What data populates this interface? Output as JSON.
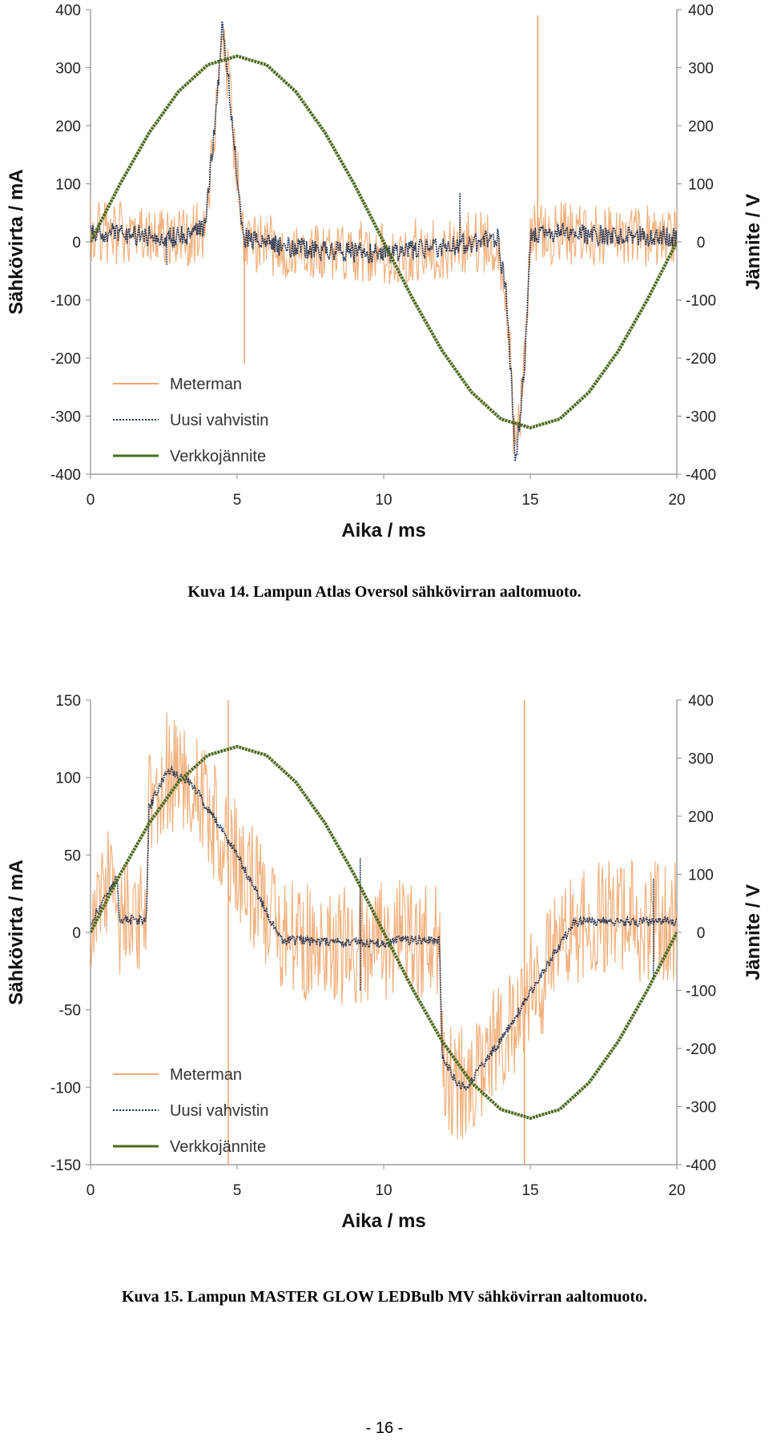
{
  "chart_data": [
    {
      "type": "line",
      "title": "",
      "xlabel": "Aika / ms",
      "ylabel": "Sähkövirta / mA",
      "y2label": "Jännite / V",
      "xlim": [
        0,
        20
      ],
      "ylim": [
        -400,
        400
      ],
      "y2lim": [
        -400,
        400
      ],
      "xticks": [
        0,
        5,
        10,
        15,
        20
      ],
      "xtick_labels": [
        "0",
        "5",
        "10",
        "15",
        "20"
      ],
      "yticks": [
        -400,
        -300,
        -200,
        -100,
        0,
        100,
        200,
        300,
        400
      ],
      "ytick_labels": [
        "-400",
        "-300",
        "-200",
        "-100",
        "0",
        "100",
        "200",
        "300",
        "400"
      ],
      "y2ticks": [
        -400,
        -300,
        -200,
        -100,
        0,
        100,
        200,
        300,
        400
      ],
      "y2tick_labels": [
        "-400",
        "-300",
        "-200",
        "-100",
        "0",
        "100",
        "200",
        "300",
        "400"
      ],
      "legend_position": "bottom-left",
      "grid": false,
      "series": [
        {
          "name": "Meterman",
          "style": "solid",
          "color": "#f2a870",
          "axis": "left",
          "noise_amplitude": 55,
          "x": [
            0,
            1,
            2,
            3,
            3.9,
            4.3,
            4.5,
            4.7,
            5.2,
            6,
            8,
            10,
            12,
            13.9,
            14.2,
            14.5,
            14.8,
            15,
            16,
            18,
            20
          ],
          "y": [
            20,
            15,
            10,
            8,
            25,
            230,
            380,
            280,
            10,
            -5,
            -15,
            -20,
            -10,
            5,
            -100,
            -380,
            -220,
            10,
            15,
            10,
            10
          ]
        },
        {
          "name": "Uusi vahvistin",
          "style": "dotted",
          "color": "#17294a",
          "axis": "left",
          "noise_amplitude": 18,
          "x": [
            0,
            1,
            2,
            3,
            3.9,
            4.3,
            4.5,
            4.7,
            5.2,
            6,
            8,
            10,
            12,
            13.9,
            14.2,
            14.5,
            14.8,
            15,
            16,
            18,
            20
          ],
          "y": [
            20,
            15,
            10,
            8,
            25,
            230,
            380,
            280,
            10,
            -5,
            -15,
            -20,
            -10,
            5,
            -100,
            -380,
            -220,
            10,
            15,
            10,
            10
          ]
        },
        {
          "name": "Verkkojännite",
          "style": "solid",
          "color": "#4d6a1f",
          "axis": "right",
          "noise_amplitude": 0,
          "x": [
            0,
            1,
            2,
            3,
            4,
            5,
            6,
            7,
            8,
            9,
            10,
            11,
            12,
            13,
            14,
            15,
            16,
            17,
            18,
            19,
            20
          ],
          "y": [
            0,
            99,
            188,
            259,
            305,
            320,
            305,
            259,
            188,
            99,
            0,
            -99,
            -188,
            -259,
            -305,
            -320,
            -305,
            -259,
            -188,
            -99,
            0
          ]
        }
      ],
      "spikes": [
        {
          "series": "Meterman",
          "x": 5.25,
          "y": -210
        },
        {
          "series": "Meterman",
          "x": 15.25,
          "y": 390
        },
        {
          "series": "Uusi vahvistin",
          "x": 12.6,
          "y": 85
        },
        {
          "series": "Uusi vahvistin",
          "x": 2.6,
          "y": -40
        }
      ]
    },
    {
      "type": "line",
      "title": "",
      "xlabel": "Aika / ms",
      "ylabel": "Sähkövirta / mA",
      "y2label": "Jännite / V",
      "xlim": [
        0,
        20
      ],
      "ylim": [
        -150,
        150
      ],
      "y2lim": [
        -400,
        400
      ],
      "xticks": [
        0,
        5,
        10,
        15,
        20
      ],
      "xtick_labels": [
        "0",
        "5",
        "10",
        "15",
        "20"
      ],
      "yticks": [
        -150,
        -100,
        -50,
        0,
        50,
        100,
        150
      ],
      "ytick_labels": [
        "-150",
        "-100",
        "-50",
        "0",
        "50",
        "100",
        "150"
      ],
      "y2ticks": [
        -400,
        -300,
        -200,
        -100,
        0,
        100,
        200,
        300,
        400
      ],
      "y2tick_labels": [
        "-400",
        "-300",
        "-200",
        "-100",
        "0",
        "100",
        "200",
        "300",
        "400"
      ],
      "legend_position": "bottom-left",
      "grid": false,
      "series": [
        {
          "name": "Meterman",
          "style": "solid",
          "color": "#f2a870",
          "axis": "left",
          "noise_amplitude": 40,
          "x": [
            0,
            0.4,
            0.9,
            1.0,
            1.9,
            2.0,
            2.5,
            2.7,
            3.5,
            5,
            6.5,
            9,
            10.2,
            10.4,
            11.9,
            12.0,
            12.5,
            12.8,
            14,
            16.5,
            20
          ],
          "y": [
            5,
            20,
            35,
            8,
            8,
            80,
            100,
            105,
            95,
            50,
            -5,
            -7,
            -7,
            -5,
            -5,
            -80,
            -98,
            -100,
            -70,
            7,
            7
          ]
        },
        {
          "name": "Uusi vahvistin",
          "style": "dotted",
          "color": "#17294a",
          "axis": "left",
          "noise_amplitude": 3,
          "x": [
            0,
            0.4,
            0.9,
            1.0,
            1.9,
            2.0,
            2.5,
            2.7,
            3.5,
            5,
            6.5,
            9,
            10.2,
            10.4,
            11.9,
            12.0,
            12.5,
            12.8,
            14,
            16.5,
            20
          ],
          "y": [
            5,
            20,
            35,
            8,
            8,
            80,
            100,
            105,
            95,
            50,
            -5,
            -7,
            -7,
            -5,
            -5,
            -80,
            -98,
            -100,
            -70,
            7,
            7
          ]
        },
        {
          "name": "Verkkojännite",
          "style": "solid",
          "color": "#4d6a1f",
          "axis": "right",
          "noise_amplitude": 0,
          "x": [
            0,
            1,
            2,
            3,
            4,
            5,
            6,
            7,
            8,
            9,
            10,
            11,
            12,
            13,
            14,
            15,
            16,
            17,
            18,
            19,
            20
          ],
          "y": [
            0,
            99,
            188,
            259,
            305,
            320,
            305,
            259,
            188,
            99,
            0,
            -99,
            -188,
            -259,
            -305,
            -320,
            -305,
            -259,
            -188,
            -99,
            0
          ]
        }
      ],
      "spikes": [
        {
          "series": "Meterman",
          "x": 4.7,
          "y": 150
        },
        {
          "series": "Meterman",
          "x": 4.7,
          "y": -150
        },
        {
          "series": "Meterman",
          "x": 14.8,
          "y": 150
        },
        {
          "series": "Meterman",
          "x": 14.8,
          "y": -150
        },
        {
          "series": "Uusi vahvistin",
          "x": 9.2,
          "y": 48
        },
        {
          "series": "Uusi vahvistin",
          "x": 9.2,
          "y": -38
        },
        {
          "series": "Uusi vahvistin",
          "x": 19.2,
          "y": 35
        },
        {
          "series": "Uusi vahvistin",
          "x": 19.2,
          "y": -30
        }
      ]
    }
  ],
  "captions": {
    "figure14": "Kuva 14. Lampun Atlas Oversol sähkövirran aaltomuoto.",
    "figure15": "Kuva 15. Lampun MASTER GLOW LEDBulb MV sähkövirran aaltomuoto."
  },
  "page_number": "- 16 -"
}
